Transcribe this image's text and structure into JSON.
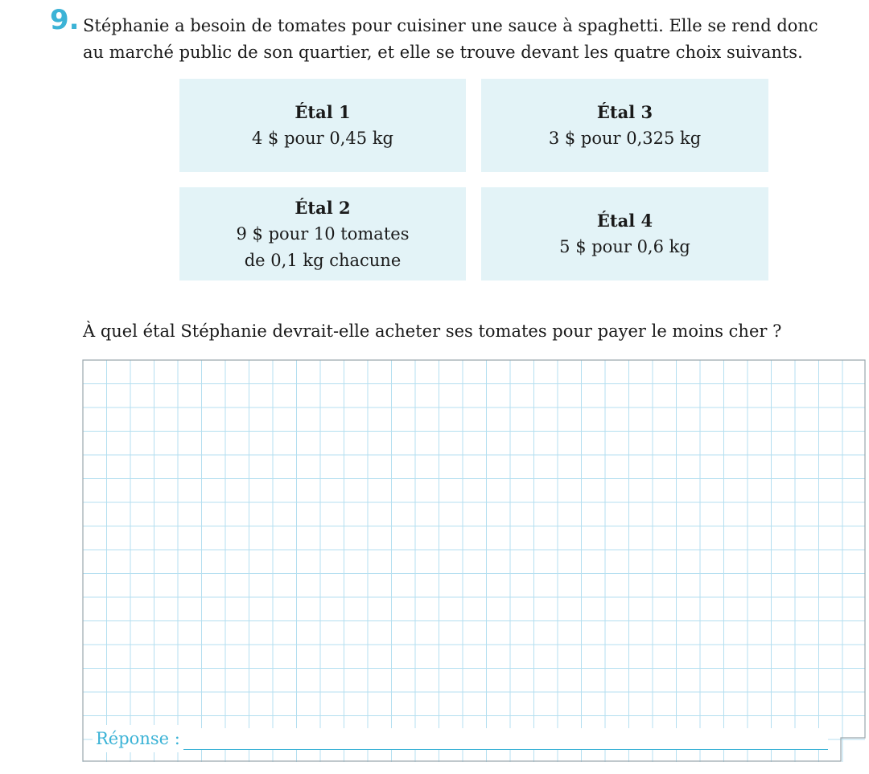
{
  "question": {
    "number": "9.",
    "text": "Stéphanie a besoin de tomates pour cuisiner une sauce à spaghetti. Elle se rend donc au marché public de son quartier, et elle se trouve devant les quatre choix suivants."
  },
  "stalls": [
    {
      "name": "Étal 1",
      "line1": "4 $ pour 0,45 kg",
      "line2": ""
    },
    {
      "name": "Étal 3",
      "line1": "3 $ pour 0,325 kg",
      "line2": ""
    },
    {
      "name": "Étal 2",
      "line1": "9 $ pour 10 tomates",
      "line2": "de 0,1 kg chacune"
    },
    {
      "name": "Étal 4",
      "line1": "5 $ pour 0,6 kg",
      "line2": ""
    }
  ],
  "prompt": "À quel étal Stéphanie devrait-elle acheter ses tomates pour payer le moins cher ?",
  "answer": {
    "label": "Réponse :",
    "value": ""
  },
  "colors": {
    "accent": "#3cb3d6",
    "box": "#e3f3f7",
    "grid": "#b4dff0"
  }
}
